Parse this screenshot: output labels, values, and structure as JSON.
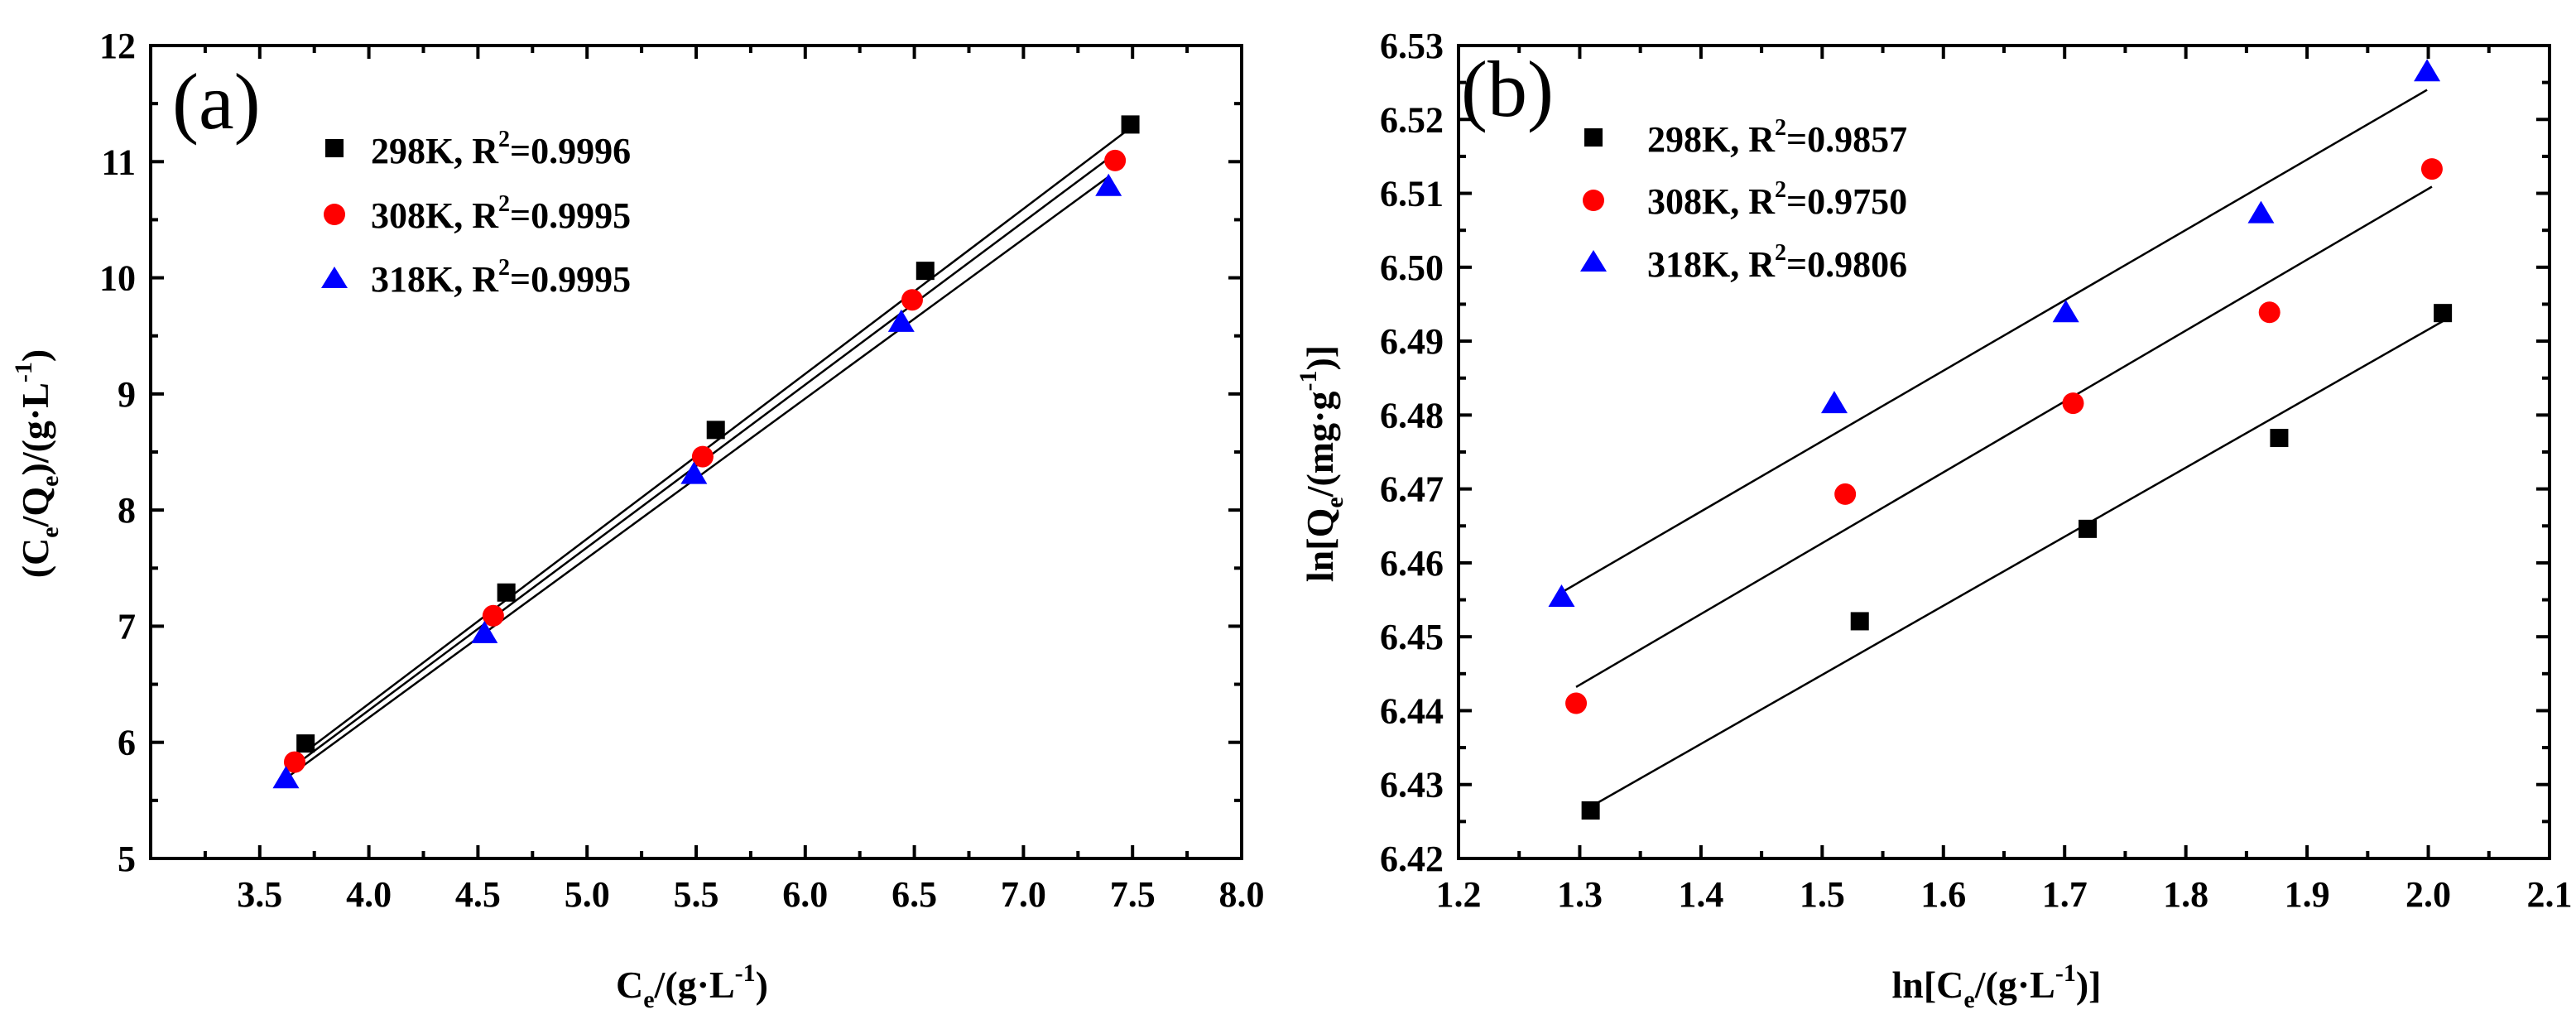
{
  "chart_data": [
    {
      "type": "scatter",
      "panel_label": "(a)",
      "title": "",
      "xlabel": "C_e/(g·L^-1)",
      "ylabel": "(C_e/Q_e)/(g·L^-1)",
      "xlim": [
        3.0,
        8.0
      ],
      "ylim": [
        5,
        12
      ],
      "xticks": [
        "3.5",
        "4.0",
        "4.5",
        "5.0",
        "5.5",
        "6.0",
        "6.5",
        "7.0",
        "7.5",
        "8.0"
      ],
      "yticks": [
        "5",
        "6",
        "7",
        "8",
        "9",
        "10",
        "11",
        "12"
      ],
      "legend_position": "top-left",
      "series": [
        {
          "name": "298K",
          "legend_label": "298K, R",
          "r2": "=0.9996",
          "marker": "square",
          "color": "#000000",
          "x": [
            3.71,
            4.63,
            5.59,
            6.55,
            7.49
          ],
          "y": [
            5.99,
            7.29,
            8.69,
            10.06,
            11.32
          ],
          "fit": [
            [
              3.71,
              5.92
            ],
            [
              7.49,
              11.29
            ]
          ]
        },
        {
          "name": "308K",
          "legend_label": "308K, R",
          "r2": "=0.9995",
          "marker": "circle",
          "color": "#ff0000",
          "x": [
            3.66,
            4.57,
            5.53,
            6.49,
            7.42
          ],
          "y": [
            5.83,
            7.09,
            8.46,
            9.81,
            11.01
          ],
          "fit": [
            [
              3.66,
              5.8
            ],
            [
              7.42,
              11.07
            ]
          ]
        },
        {
          "name": "318K",
          "legend_label": "318K, R",
          "r2": "=0.9995",
          "marker": "triangle",
          "color": "#0000ff",
          "x": [
            3.62,
            4.53,
            5.49,
            6.44,
            7.39
          ],
          "y": [
            5.69,
            6.94,
            8.31,
            9.62,
            10.79
          ],
          "fit": [
            [
              3.62,
              5.69
            ],
            [
              7.39,
              10.87
            ]
          ]
        }
      ]
    },
    {
      "type": "scatter",
      "panel_label": "(b)",
      "title": "",
      "xlabel": "ln[C_e/(g·L^-1)]",
      "ylabel": "ln[Q_e/(mg·g^-1)]",
      "xlim": [
        1.2,
        2.1
      ],
      "ylim": [
        6.42,
        6.53
      ],
      "xticks": [
        "1.2",
        "1.3",
        "1.4",
        "1.5",
        "1.6",
        "1.7",
        "1.8",
        "1.9",
        "2.0",
        "2.1"
      ],
      "yticks": [
        "6.42",
        "6.43",
        "6.44",
        "6.45",
        "6.46",
        "6.47",
        "6.48",
        "6.49",
        "6.50",
        "6.51",
        "6.52",
        "6.53"
      ],
      "legend_position": "top-left",
      "series": [
        {
          "name": "298K",
          "legend_label": "298K, R",
          "r2": "=0.9857",
          "marker": "square",
          "color": "#000000",
          "x": [
            1.309,
            1.531,
            1.719,
            1.877,
            2.012
          ],
          "y": [
            6.4265,
            6.4521,
            6.4646,
            6.4769,
            6.4938
          ],
          "fit": [
            [
              1.309,
              6.427
            ],
            [
              2.012,
              6.4927
            ]
          ]
        },
        {
          "name": "308K",
          "legend_label": "308K, R",
          "r2": "=0.9750",
          "marker": "circle",
          "color": "#ff0000",
          "x": [
            1.297,
            1.519,
            1.707,
            1.869,
            2.003
          ],
          "y": [
            6.441,
            6.4693,
            6.4816,
            6.4939,
            6.5133
          ],
          "fit": [
            [
              1.297,
              6.4432
            ],
            [
              2.003,
              6.5109
            ]
          ]
        },
        {
          "name": "318K",
          "legend_label": "318K, R",
          "r2": "=0.9806",
          "marker": "triangle",
          "color": "#0000ff",
          "x": [
            1.285,
            1.51,
            1.701,
            1.862,
            1.999
          ],
          "y": [
            6.4554,
            6.4816,
            6.4939,
            6.5073,
            6.5265
          ],
          "fit": [
            [
              1.285,
              6.456
            ],
            [
              1.999,
              6.524
            ]
          ]
        }
      ]
    }
  ]
}
